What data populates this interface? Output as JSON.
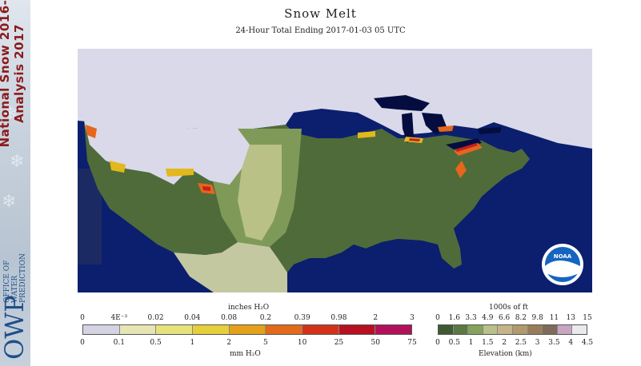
{
  "header": {
    "title": "Snow Melt",
    "subtitle": "24-Hour Total Ending 2017-01-03 05 UTC"
  },
  "sidebar": {
    "season_line1": "National Snow 2016-",
    "season_line2": "Analysis 2017",
    "org_line1": "OFFICE OF",
    "org_line2": "WATER",
    "org_line3": "PREDICTION",
    "org_abbr": "OWP"
  },
  "map": {
    "logo_text": "NOAA",
    "colors": {
      "ocean": "#0b1f6e",
      "outside": "#1c2a63",
      "snow": "#d9d9e9",
      "lowland": "#4f6b3a",
      "midland": "#7f9a58",
      "upland": "#b9c487",
      "mexico": "#c4c8a0",
      "water": "#050d40",
      "melt_low": "#e2b81c",
      "melt_mid": "#e5661c",
      "melt_high": "#c81e1e"
    }
  },
  "melt_legend": {
    "top_label": "inches H₂O",
    "bottom_label": "mm H₂O",
    "inches": [
      "0",
      "4E⁻³",
      "0.02",
      "0.04",
      "0.08",
      "0.2",
      "0.39",
      "0.98",
      "2",
      "3"
    ],
    "mm": [
      "0",
      "0.1",
      "0.5",
      "1",
      "2",
      "5",
      "10",
      "25",
      "50",
      "75"
    ],
    "colors": [
      "#d4d3e4",
      "#e6e5b3",
      "#e6e27c",
      "#e5cf3a",
      "#e5a218",
      "#e26a1a",
      "#d33218",
      "#b8101e",
      "#b3105a"
    ]
  },
  "elev_legend": {
    "top_label": "1000s of ft",
    "bottom_label": "Elevation (km)",
    "feet": [
      "0",
      "1.6",
      "3.3",
      "4.9",
      "6.6",
      "8.2",
      "9.8",
      "11",
      "13",
      "15"
    ],
    "km": [
      "0",
      "0.5",
      "1",
      "1.5",
      "2",
      "2.5",
      "3",
      "3.5",
      "4",
      "4.5"
    ],
    "colors": [
      "#3f5a33",
      "#5b7a41",
      "#86a35d",
      "#b9c189",
      "#c5b487",
      "#b39a6b",
      "#9a7d58",
      "#7e6b5a",
      "#c9a5c2",
      "#ece9ee"
    ]
  }
}
